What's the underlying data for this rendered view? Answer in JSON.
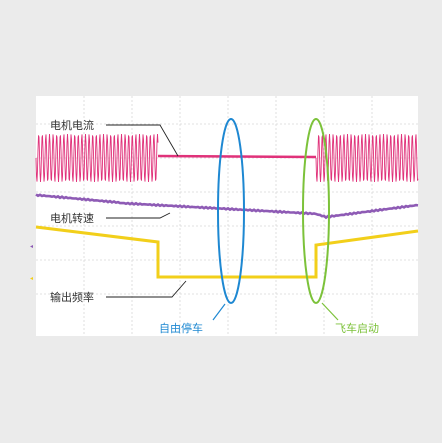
{
  "signals": {
    "motor_current": "电机电流",
    "motor_speed": "电机转速",
    "output_frequency": "输出频率"
  },
  "annotations": {
    "coast_stop": "自由停车",
    "flying_start": "飞车启动"
  },
  "colors": {
    "background": "#ebebeb",
    "plot_bg": "#ffffff",
    "current": "#e0327a",
    "speed": "#8e5bb5",
    "frequency": "#f2cf1a",
    "coast_stop_marker": "#1e88d2",
    "flying_start_marker": "#7cc23a"
  }
}
